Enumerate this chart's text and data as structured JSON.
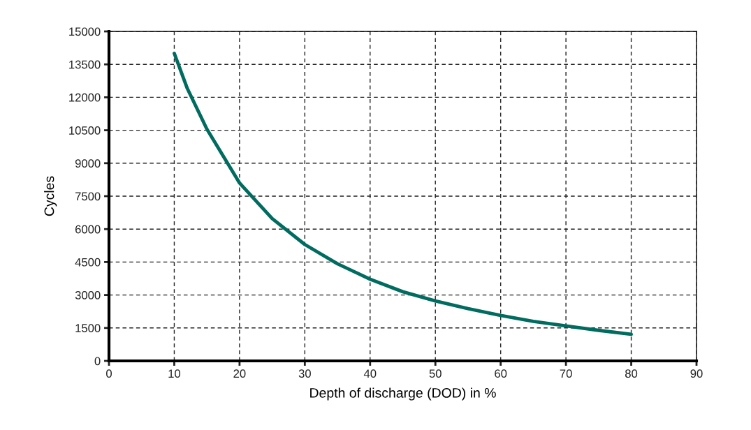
{
  "chart_data": {
    "type": "line",
    "xlabel": "Depth of discharge (DOD) in %",
    "ylabel": "Cycles",
    "x": [
      10,
      11,
      12,
      15,
      20,
      25,
      30,
      35,
      40,
      45,
      50,
      55,
      60,
      65,
      70,
      75,
      80
    ],
    "series": [
      {
        "color": "#006b5f",
        "values": [
          14000,
          13200,
          12400,
          10550,
          8100,
          6480,
          5300,
          4420,
          3720,
          3150,
          2730,
          2380,
          2070,
          1800,
          1590,
          1390,
          1210
        ]
      }
    ],
    "xlim": [
      0,
      90
    ],
    "xticks": [
      0,
      10,
      20,
      30,
      40,
      50,
      60,
      70,
      80,
      90
    ],
    "ylim": [
      0,
      15000
    ],
    "yticks": [
      0,
      1500,
      3000,
      4500,
      6000,
      7500,
      9000,
      10500,
      12000,
      13500,
      15000
    ],
    "grid": true,
    "line_style": "solid",
    "marker": "none"
  }
}
